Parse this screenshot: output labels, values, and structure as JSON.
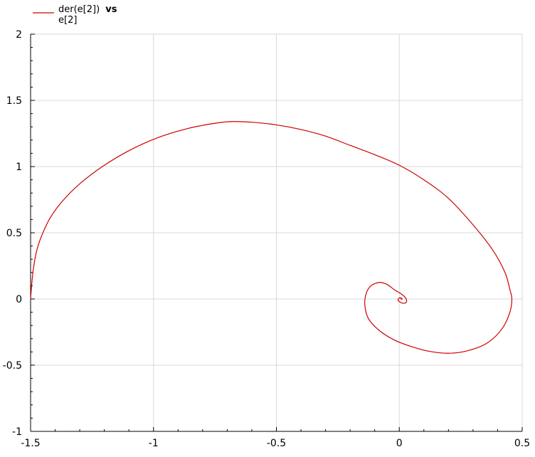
{
  "chart_data": {
    "type": "line",
    "legend_position": "top-left",
    "grid": true,
    "xlim": [
      -1.5,
      0.5
    ],
    "ylim": [
      -1,
      2
    ],
    "x_ticks": [
      -1.5,
      -1,
      -0.5,
      0,
      0.5
    ],
    "x_tick_labels": [
      "-1.5",
      "-1",
      "-0.5",
      "0",
      "0.5"
    ],
    "y_ticks": [
      -1,
      -0.5,
      0,
      0.5,
      1,
      1.5,
      2
    ],
    "y_tick_labels": [
      "-1",
      "-0.5",
      "0",
      "0.5",
      "1",
      "1.5",
      "2"
    ],
    "legend": {
      "label_part1": "der(e[2])",
      "label_part2": "vs",
      "label_part3": "e[2]"
    },
    "series": [
      {
        "color": "#cc0000",
        "x": [
          -1.5,
          -1.495,
          -1.487,
          -1.473,
          -1.45,
          -1.418,
          -1.37,
          -1.3,
          -1.208,
          -1.1,
          -0.98,
          -0.855,
          -0.74,
          -0.68,
          -0.6,
          -0.5,
          -0.4,
          -0.3,
          -0.2,
          -0.1,
          0,
          0.1,
          0.2,
          0.3,
          0.38,
          0.43,
          0.45,
          0.458,
          0.45,
          0.42,
          0.36,
          0.28,
          0.2,
          0.12,
          0.05,
          -0.02,
          -0.08,
          -0.125,
          -0.14,
          -0.135,
          -0.115,
          -0.08,
          -0.05,
          -0.02,
          0.01,
          0.025,
          0.03,
          0.025,
          0.01,
          -0.005,
          0.002,
          0.012,
          0.005
        ],
        "y": [
          0,
          0.12,
          0.25,
          0.38,
          0.5,
          0.62,
          0.74,
          0.87,
          1.0,
          1.12,
          1.22,
          1.29,
          1.33,
          1.34,
          1.335,
          1.315,
          1.28,
          1.23,
          1.16,
          1.09,
          1.01,
          0.9,
          0.76,
          0.56,
          0.37,
          0.2,
          0.07,
          0.0,
          -0.1,
          -0.22,
          -0.33,
          -0.39,
          -0.41,
          -0.395,
          -0.36,
          -0.31,
          -0.24,
          -0.15,
          -0.05,
          0.04,
          0.1,
          0.125,
          0.11,
          0.07,
          0.035,
          0.01,
          -0.015,
          -0.03,
          -0.03,
          -0.01,
          0.01,
          0.0,
          0.0
        ]
      }
    ]
  }
}
